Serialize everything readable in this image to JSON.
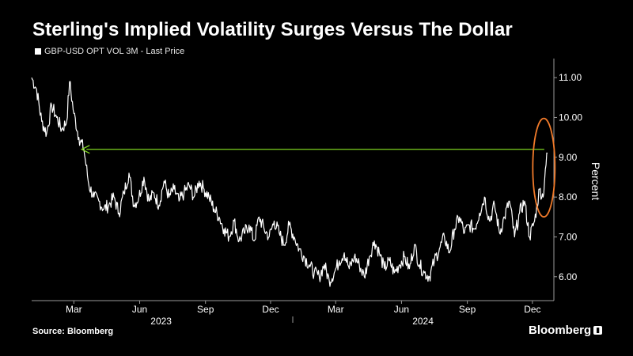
{
  "title": "Sterling's Implied Volatility Surges Versus The Dollar",
  "source": "Source: Bloomberg",
  "brand": "Bloomberg",
  "colors": {
    "background": "#000000",
    "series": "#ffffff",
    "arrow": "#7ed321",
    "highlight": "#f07a2a",
    "axis": "#9a9a9a"
  },
  "icons": {
    "brand_icon": "chart-bars-icon"
  },
  "chart_data": {
    "type": "line",
    "legend": "GBP-USD OPT VOL 3M - Last Price",
    "legend_position": "top-left",
    "ylabel": "Percent",
    "y_axis_side": "right",
    "ylim": [
      5.4,
      11.4
    ],
    "yticks": [
      6,
      7,
      8,
      9,
      10,
      11
    ],
    "ytick_labels": [
      "6.00",
      "7.00",
      "8.00",
      "9.00",
      "10.00",
      "11.00"
    ],
    "xlim": [
      "2023-01-01",
      "2024-12-31"
    ],
    "xticks": [
      {
        "date": "2023-03-01",
        "label": "Mar"
      },
      {
        "date": "2023-06-01",
        "label": "Jun"
      },
      {
        "date": "2023-09-01",
        "label": "Sep"
      },
      {
        "date": "2023-12-01",
        "label": "Dec"
      },
      {
        "date": "2024-03-01",
        "label": "Mar"
      },
      {
        "date": "2024-06-01",
        "label": "Jun"
      },
      {
        "date": "2024-09-01",
        "label": "Sep"
      },
      {
        "date": "2024-12-01",
        "label": "Dec"
      }
    ],
    "year_labels": [
      {
        "date": "2023-07-01",
        "label": "2023"
      },
      {
        "date": "2024-07-01",
        "label": "2024"
      }
    ],
    "grid": false,
    "series": [
      {
        "name": "GBP-USD OPT VOL 3M - Last Price",
        "x": [
          "2023-01-01",
          "2023-01-08",
          "2023-01-15",
          "2023-01-22",
          "2023-01-29",
          "2023-02-05",
          "2023-02-12",
          "2023-02-19",
          "2023-02-23",
          "2023-03-01",
          "2023-03-08",
          "2023-03-15",
          "2023-03-22",
          "2023-03-29",
          "2023-04-05",
          "2023-04-12",
          "2023-04-19",
          "2023-04-26",
          "2023-05-03",
          "2023-05-10",
          "2023-05-17",
          "2023-05-24",
          "2023-05-31",
          "2023-06-07",
          "2023-06-14",
          "2023-06-21",
          "2023-06-28",
          "2023-07-05",
          "2023-07-12",
          "2023-07-19",
          "2023-07-26",
          "2023-08-02",
          "2023-08-09",
          "2023-08-16",
          "2023-08-23",
          "2023-08-30",
          "2023-09-06",
          "2023-09-13",
          "2023-09-20",
          "2023-09-27",
          "2023-10-04",
          "2023-10-11",
          "2023-10-18",
          "2023-10-25",
          "2023-11-01",
          "2023-11-08",
          "2023-11-15",
          "2023-11-22",
          "2023-11-29",
          "2023-12-06",
          "2023-12-13",
          "2023-12-20",
          "2023-12-27",
          "2024-01-03",
          "2024-01-10",
          "2024-01-17",
          "2024-01-24",
          "2024-01-31",
          "2024-02-07",
          "2024-02-14",
          "2024-02-21",
          "2024-02-28",
          "2024-03-06",
          "2024-03-13",
          "2024-03-20",
          "2024-03-27",
          "2024-04-03",
          "2024-04-10",
          "2024-04-17",
          "2024-04-24",
          "2024-05-01",
          "2024-05-08",
          "2024-05-15",
          "2024-05-22",
          "2024-05-29",
          "2024-06-05",
          "2024-06-12",
          "2024-06-19",
          "2024-06-26",
          "2024-07-03",
          "2024-07-10",
          "2024-07-17",
          "2024-07-24",
          "2024-07-31",
          "2024-08-07",
          "2024-08-14",
          "2024-08-21",
          "2024-08-28",
          "2024-09-04",
          "2024-09-11",
          "2024-09-18",
          "2024-09-25",
          "2024-10-02",
          "2024-10-09",
          "2024-10-16",
          "2024-10-23",
          "2024-10-30",
          "2024-11-06",
          "2024-11-13",
          "2024-11-20",
          "2024-11-27",
          "2024-12-04",
          "2024-12-11",
          "2024-12-16",
          "2024-12-19",
          "2024-12-22"
        ],
        "values": [
          11.0,
          10.7,
          9.9,
          9.6,
          10.3,
          10.0,
          9.7,
          9.9,
          10.9,
          10.1,
          9.5,
          9.2,
          8.3,
          8.0,
          7.9,
          7.7,
          7.8,
          8.0,
          7.6,
          8.1,
          8.6,
          7.8,
          8.0,
          8.5,
          7.9,
          8.1,
          7.8,
          8.4,
          8.0,
          8.2,
          7.9,
          8.1,
          8.3,
          8.0,
          8.4,
          8.2,
          8.0,
          7.7,
          7.5,
          7.2,
          7.0,
          7.4,
          6.9,
          7.1,
          7.3,
          6.9,
          7.5,
          7.2,
          7.0,
          7.4,
          7.1,
          6.8,
          7.3,
          7.0,
          6.7,
          6.5,
          6.3,
          6.1,
          6.0,
          6.3,
          5.9,
          6.1,
          6.4,
          6.6,
          6.2,
          6.5,
          6.3,
          6.0,
          6.5,
          6.9,
          6.6,
          6.2,
          6.4,
          6.1,
          6.3,
          6.5,
          6.2,
          6.8,
          6.3,
          6.1,
          6.0,
          6.4,
          6.7,
          7.0,
          6.6,
          7.2,
          7.5,
          7.1,
          7.3,
          7.2,
          7.6,
          8.0,
          7.4,
          7.8,
          7.1,
          7.5,
          7.9,
          7.0,
          7.6,
          7.9,
          7.0,
          7.4,
          8.2,
          8.0,
          8.7,
          9.1
        ]
      }
    ],
    "annotations": [
      {
        "type": "horizontal-arrow",
        "from_date": "2024-12-22",
        "to_date": "2023-03-12",
        "y": 9.2,
        "color": "#7ed321"
      },
      {
        "type": "ellipse-highlight",
        "center_date": "2024-12-17",
        "y_range": [
          7.9,
          9.5
        ],
        "color": "#f07a2a"
      }
    ]
  }
}
